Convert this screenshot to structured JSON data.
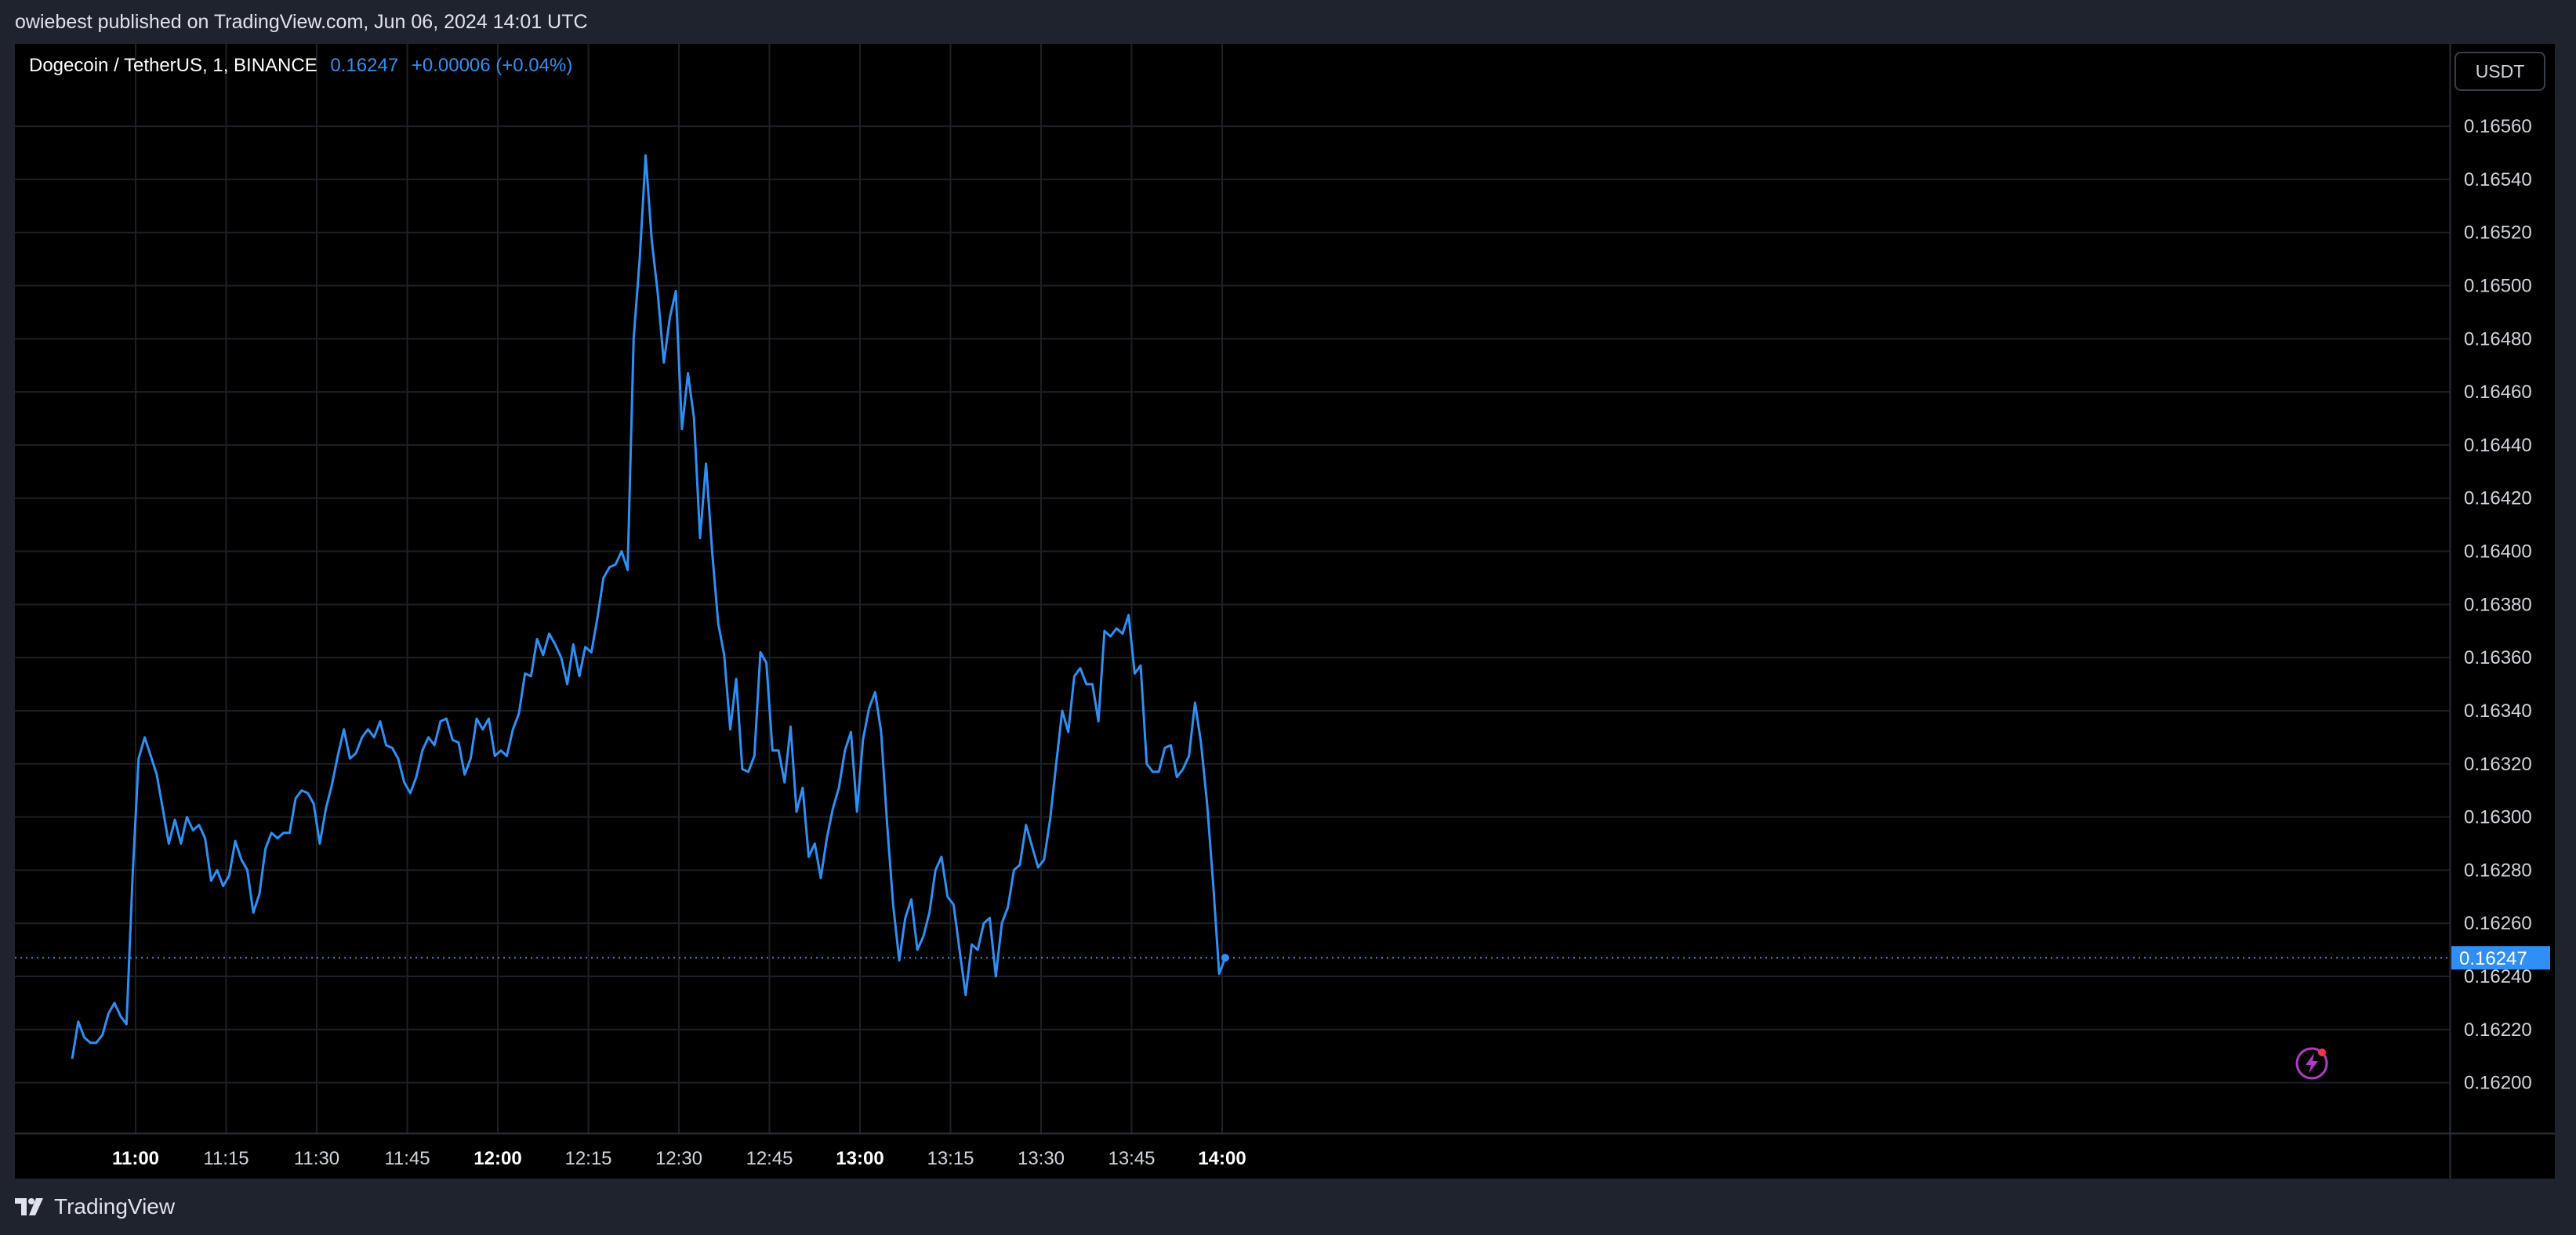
{
  "header": {
    "published": "owiebest published on TradingView.com, Jun 06, 2024 14:01 UTC"
  },
  "legend": {
    "symbol": "Dogecoin / TetherUS, 1, BINANCE",
    "price": "0.16247",
    "change": "+0.00006 (+0.04%)"
  },
  "toolbar": {
    "currency": "USDT"
  },
  "footer": {
    "brand": "TradingView"
  },
  "colors": {
    "line": "#2f8ff5",
    "background": "#000000",
    "grid": "#1c1f26",
    "axis_text": "#d1d4dc",
    "price_label": "#2f8ff5"
  },
  "chart_data": {
    "type": "line",
    "title": "",
    "xlabel": "",
    "ylabel": "",
    "grid": true,
    "x_range": [
      "10:58",
      "14:20"
    ],
    "ylim": [
      0.16181,
      0.16591
    ],
    "y_ticks": [
      "0.16200",
      "0.16220",
      "0.16240",
      "0.16260",
      "0.16280",
      "0.16300",
      "0.16320",
      "0.16340",
      "0.16360",
      "0.16380",
      "0.16400",
      "0.16420",
      "0.16440",
      "0.16460",
      "0.16480",
      "0.16500",
      "0.16520",
      "0.16540",
      "0.16560"
    ],
    "x_ticks": [
      {
        "label": "11:00",
        "bold": true
      },
      {
        "label": "11:15",
        "bold": false
      },
      {
        "label": "11:30",
        "bold": false
      },
      {
        "label": "11:45",
        "bold": false
      },
      {
        "label": "12:00",
        "bold": true
      },
      {
        "label": "12:15",
        "bold": false
      },
      {
        "label": "12:30",
        "bold": false
      },
      {
        "label": "12:45",
        "bold": false
      },
      {
        "label": "13:00",
        "bold": true
      },
      {
        "label": "13:15",
        "bold": false
      },
      {
        "label": "13:30",
        "bold": false
      },
      {
        "label": "13:45",
        "bold": false
      },
      {
        "label": "14:00",
        "bold": true
      }
    ],
    "last_price": "0.16247",
    "series": [
      {
        "values": [
          [
            -10.5,
            0.16209
          ],
          [
            -9.5,
            0.16223
          ],
          [
            -8.5,
            0.16217
          ],
          [
            -7.5,
            0.16215
          ],
          [
            -6.5,
            0.16215
          ],
          [
            -5.5,
            0.16218
          ],
          [
            -4.5,
            0.16226
          ],
          [
            -3.5,
            0.1623
          ],
          [
            -2.5,
            0.16225
          ],
          [
            -1.5,
            0.16222
          ],
          [
            -0.5,
            0.16278
          ],
          [
            0.5,
            0.16322
          ],
          [
            1.5,
            0.1633
          ],
          [
            2.5,
            0.16323
          ],
          [
            3.5,
            0.16316
          ],
          [
            4.5,
            0.16303
          ],
          [
            5.5,
            0.1629
          ],
          [
            6.5,
            0.16299
          ],
          [
            7.5,
            0.1629
          ],
          [
            8.5,
            0.163
          ],
          [
            9.5,
            0.16295
          ],
          [
            10.5,
            0.16297
          ],
          [
            11.5,
            0.16292
          ],
          [
            12.5,
            0.16276
          ],
          [
            13.5,
            0.1628
          ],
          [
            14.5,
            0.16274
          ],
          [
            15.5,
            0.16278
          ],
          [
            16.5,
            0.16291
          ],
          [
            17.5,
            0.16284
          ],
          [
            18.5,
            0.1628
          ],
          [
            19.5,
            0.16264
          ],
          [
            20.5,
            0.16271
          ],
          [
            21.5,
            0.16288
          ],
          [
            22.5,
            0.16294
          ],
          [
            23.5,
            0.16292
          ],
          [
            24.5,
            0.16294
          ],
          [
            25.5,
            0.16294
          ],
          [
            26.5,
            0.16307
          ],
          [
            27.5,
            0.1631
          ],
          [
            28.5,
            0.16309
          ],
          [
            29.5,
            0.16305
          ],
          [
            30.5,
            0.1629
          ],
          [
            31.5,
            0.16303
          ],
          [
            32.5,
            0.16312
          ],
          [
            33.5,
            0.16323
          ],
          [
            34.5,
            0.16333
          ],
          [
            35.5,
            0.16322
          ],
          [
            36.5,
            0.16324
          ],
          [
            37.5,
            0.1633
          ],
          [
            38.5,
            0.16333
          ],
          [
            39.5,
            0.1633
          ],
          [
            40.5,
            0.16336
          ],
          [
            41.5,
            0.16327
          ],
          [
            42.5,
            0.16326
          ],
          [
            43.5,
            0.16322
          ],
          [
            44.5,
            0.16313
          ],
          [
            45.5,
            0.16309
          ],
          [
            46.5,
            0.16315
          ],
          [
            47.5,
            0.16325
          ],
          [
            48.5,
            0.1633
          ],
          [
            49.5,
            0.16327
          ],
          [
            50.5,
            0.16336
          ],
          [
            51.5,
            0.16337
          ],
          [
            52.5,
            0.16329
          ],
          [
            53.5,
            0.16328
          ],
          [
            54.5,
            0.16316
          ],
          [
            55.5,
            0.16322
          ],
          [
            56.5,
            0.16337
          ],
          [
            57.5,
            0.16333
          ],
          [
            58.5,
            0.16337
          ],
          [
            59.5,
            0.16323
          ],
          [
            60.5,
            0.16325
          ],
          [
            61.5,
            0.16323
          ],
          [
            62.5,
            0.16333
          ],
          [
            63.5,
            0.16339
          ],
          [
            64.5,
            0.16354
          ],
          [
            65.5,
            0.16353
          ],
          [
            66.5,
            0.16367
          ],
          [
            67.5,
            0.16361
          ],
          [
            68.5,
            0.16369
          ],
          [
            69.5,
            0.16365
          ],
          [
            70.5,
            0.1636
          ],
          [
            71.5,
            0.1635
          ],
          [
            72.5,
            0.16365
          ],
          [
            73.5,
            0.16353
          ],
          [
            74.5,
            0.16364
          ],
          [
            75.5,
            0.16362
          ],
          [
            76.5,
            0.16375
          ],
          [
            77.5,
            0.1639
          ],
          [
            78.5,
            0.16394
          ],
          [
            79.5,
            0.16395
          ],
          [
            80.5,
            0.164
          ],
          [
            81.5,
            0.16393
          ],
          [
            82.5,
            0.1648
          ],
          [
            83.5,
            0.1651
          ],
          [
            84.5,
            0.16549
          ],
          [
            85.5,
            0.16517
          ],
          [
            86.5,
            0.16497
          ],
          [
            87.5,
            0.16471
          ],
          [
            88.5,
            0.16488
          ],
          [
            89.5,
            0.16498
          ],
          [
            90.5,
            0.16446
          ],
          [
            91.5,
            0.16467
          ],
          [
            92.5,
            0.1645
          ],
          [
            93.5,
            0.16405
          ],
          [
            94.5,
            0.16433
          ],
          [
            95.5,
            0.164
          ],
          [
            96.5,
            0.16373
          ],
          [
            97.5,
            0.16361
          ],
          [
            98.5,
            0.16333
          ],
          [
            99.5,
            0.16352
          ],
          [
            100.5,
            0.16318
          ],
          [
            101.5,
            0.16317
          ],
          [
            102.5,
            0.16323
          ],
          [
            103.5,
            0.16362
          ],
          [
            104.5,
            0.16358
          ],
          [
            105.5,
            0.16325
          ],
          [
            106.5,
            0.16325
          ],
          [
            107.5,
            0.16313
          ],
          [
            108.5,
            0.16334
          ],
          [
            109.5,
            0.16302
          ],
          [
            110.5,
            0.16311
          ],
          [
            111.5,
            0.16285
          ],
          [
            112.5,
            0.1629
          ],
          [
            113.5,
            0.16277
          ],
          [
            114.5,
            0.16292
          ],
          [
            115.5,
            0.16303
          ],
          [
            116.5,
            0.16311
          ],
          [
            117.5,
            0.16325
          ],
          [
            118.5,
            0.16332
          ],
          [
            119.5,
            0.16302
          ],
          [
            120.5,
            0.16329
          ],
          [
            121.5,
            0.16341
          ],
          [
            122.5,
            0.16347
          ],
          [
            123.5,
            0.16332
          ],
          [
            124.5,
            0.16297
          ],
          [
            125.5,
            0.16267
          ],
          [
            126.5,
            0.16246
          ],
          [
            127.5,
            0.16262
          ],
          [
            128.5,
            0.16269
          ],
          [
            129.5,
            0.1625
          ],
          [
            130.5,
            0.16255
          ],
          [
            131.5,
            0.16264
          ],
          [
            132.5,
            0.1628
          ],
          [
            133.5,
            0.16285
          ],
          [
            134.5,
            0.1627
          ],
          [
            135.5,
            0.16267
          ],
          [
            136.5,
            0.1625
          ],
          [
            137.5,
            0.16233
          ],
          [
            138.5,
            0.16252
          ],
          [
            139.5,
            0.1625
          ],
          [
            140.5,
            0.1626
          ],
          [
            141.5,
            0.16262
          ],
          [
            142.5,
            0.1624
          ],
          [
            143.5,
            0.1626
          ],
          [
            144.5,
            0.16266
          ],
          [
            145.5,
            0.1628
          ],
          [
            146.5,
            0.16282
          ],
          [
            147.5,
            0.16297
          ],
          [
            148.5,
            0.16289
          ],
          [
            149.5,
            0.16281
          ],
          [
            150.5,
            0.16284
          ],
          [
            151.5,
            0.16299
          ],
          [
            152.5,
            0.1632
          ],
          [
            153.5,
            0.1634
          ],
          [
            154.5,
            0.16332
          ],
          [
            155.5,
            0.16353
          ],
          [
            156.5,
            0.16356
          ],
          [
            157.5,
            0.1635
          ],
          [
            158.5,
            0.1635
          ],
          [
            159.5,
            0.16336
          ],
          [
            160.5,
            0.1637
          ],
          [
            161.5,
            0.16368
          ],
          [
            162.5,
            0.16371
          ],
          [
            163.5,
            0.16369
          ],
          [
            164.5,
            0.16376
          ],
          [
            165.5,
            0.16354
          ],
          [
            166.5,
            0.16357
          ],
          [
            167.5,
            0.1632
          ],
          [
            168.5,
            0.16317
          ],
          [
            169.5,
            0.16317
          ],
          [
            170.5,
            0.16326
          ],
          [
            171.5,
            0.16327
          ],
          [
            172.5,
            0.16315
          ],
          [
            173.5,
            0.16318
          ],
          [
            174.5,
            0.16323
          ],
          [
            175.5,
            0.16343
          ],
          [
            176.5,
            0.16328
          ],
          [
            177.5,
            0.16305
          ],
          [
            178.5,
            0.16275
          ],
          [
            179.5,
            0.16241
          ],
          [
            180.5,
            0.16247
          ]
        ]
      }
    ]
  }
}
